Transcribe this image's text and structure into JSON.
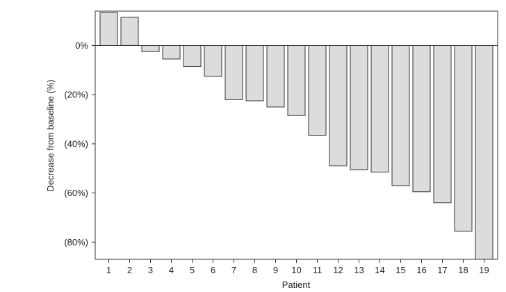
{
  "chart_data": {
    "type": "bar",
    "title": "",
    "xlabel": "Patient",
    "ylabel": "Decrease from baseline (%)",
    "categories": [
      "1",
      "2",
      "3",
      "4",
      "5",
      "6",
      "7",
      "8",
      "9",
      "10",
      "11",
      "12",
      "13",
      "14",
      "15",
      "16",
      "17",
      "18",
      "19"
    ],
    "values": [
      13.5,
      11.5,
      -2.5,
      -5.5,
      -8.5,
      -12.5,
      -22,
      -22.5,
      -25,
      -28.5,
      -36.5,
      -49,
      -50.5,
      -51.5,
      -57,
      -59.5,
      -64,
      -75.5,
      -87
    ],
    "ylim": [
      -87,
      14
    ],
    "yticks": [
      {
        "value": 0,
        "label": "0%"
      },
      {
        "value": -20,
        "label": "(20%)"
      },
      {
        "value": -40,
        "label": "(40%)"
      },
      {
        "value": -60,
        "label": "(60%)"
      },
      {
        "value": -80,
        "label": "(80%)"
      }
    ],
    "grid": false,
    "bar_fill": "#dcdcdc",
    "bar_stroke": "#333333",
    "axis_color": "#333333"
  }
}
